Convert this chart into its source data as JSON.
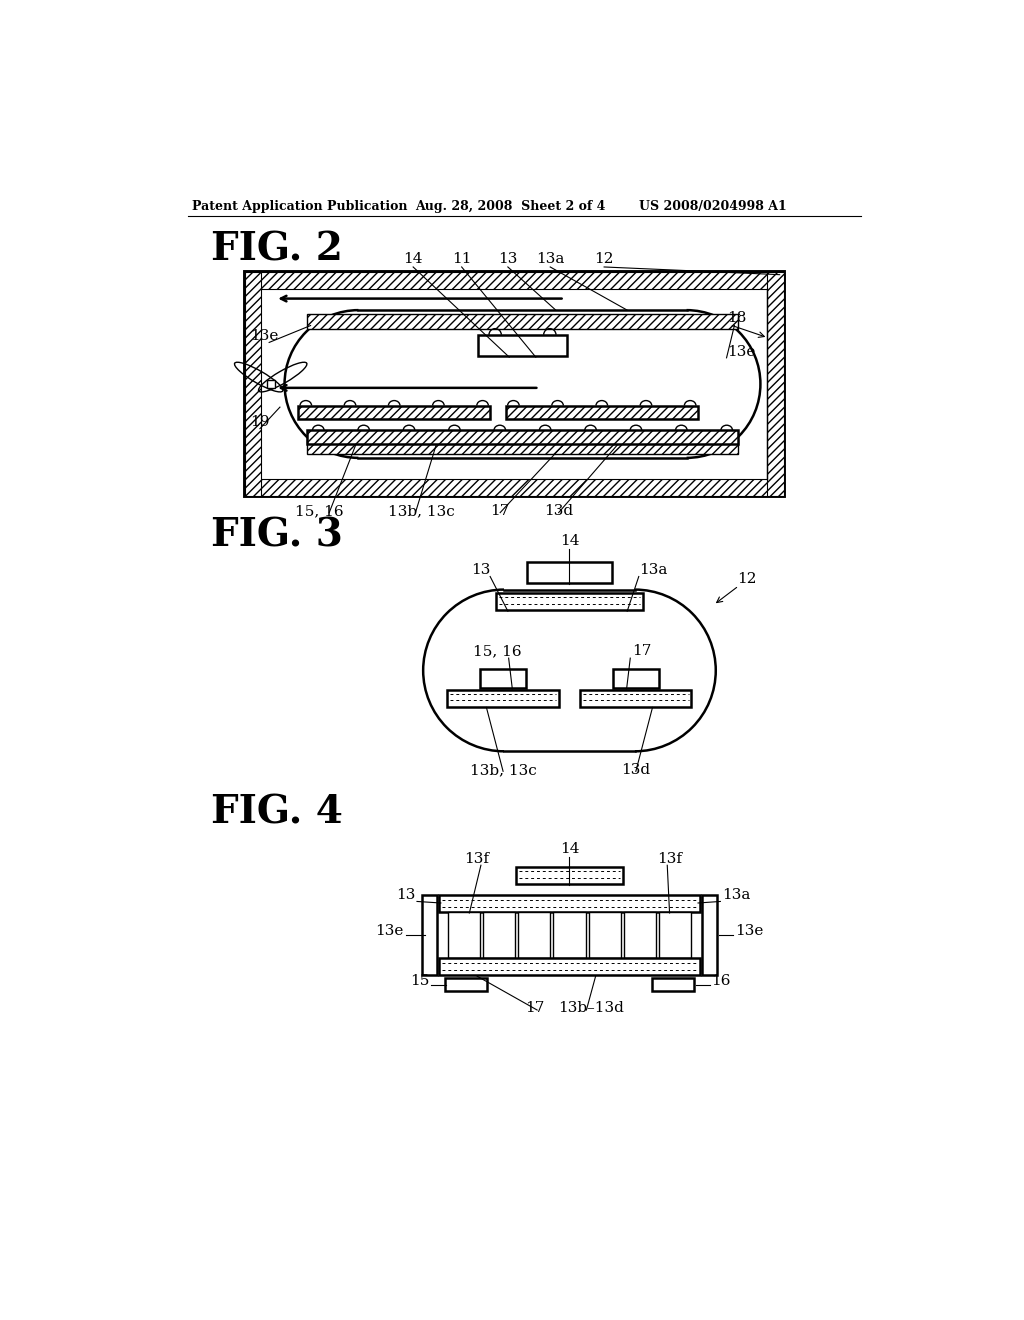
{
  "bg_color": "#ffffff",
  "header_text": "Patent Application Publication",
  "header_date": "Aug. 28, 2008  Sheet 2 of 4",
  "header_patent": "US 2008/0204998 A1",
  "fig2_title": "FIG. 2",
  "fig3_title": "FIG. 3",
  "fig4_title": "FIG. 4",
  "label_fs": 11,
  "title_fs": 28,
  "header_fs": 9
}
